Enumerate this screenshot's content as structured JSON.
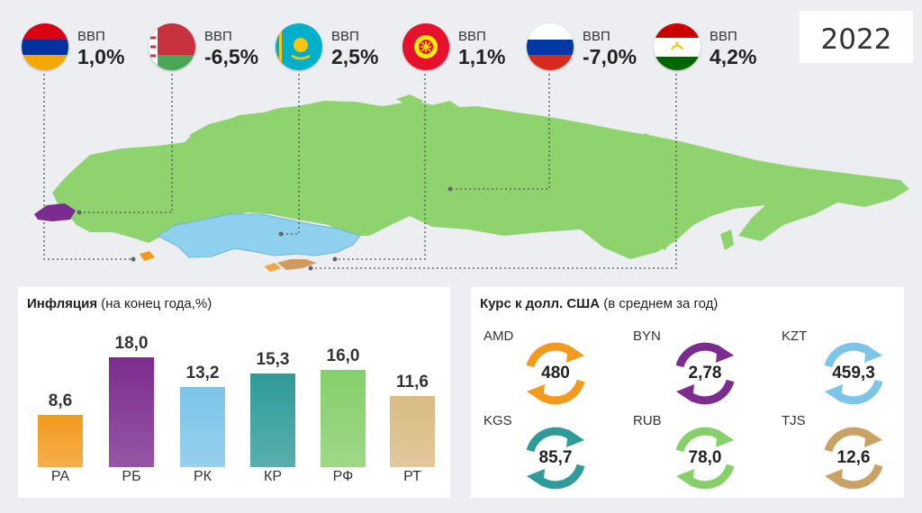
{
  "year": "2022",
  "gdp": [
    {
      "country": "Armenia",
      "label": "ВВП",
      "value": "1,0%",
      "flag": "armenia-flag"
    },
    {
      "country": "Belarus",
      "label": "ВВП",
      "value": "-6,5%",
      "flag": "belarus-flag"
    },
    {
      "country": "Kazakhstan",
      "label": "ВВП",
      "value": "2,5%",
      "flag": "kazakhstan-flag"
    },
    {
      "country": "Kyrgyzstan",
      "label": "ВВП",
      "value": "1,1%",
      "flag": "kyrgyzstan-flag"
    },
    {
      "country": "Russia",
      "label": "ВВП",
      "value": "-7,0%",
      "flag": "russia-flag"
    },
    {
      "country": "Tajikistan",
      "label": "ВВП",
      "value": "4,2%",
      "flag": "tajikistan-flag"
    }
  ],
  "inflation": {
    "title_bold": "Инфляция",
    "title_rest": " (на конец года,%)"
  },
  "exchange": {
    "title_bold": "Курс к долл. США",
    "title_rest": " (в среднем за год)",
    "items": [
      {
        "code": "AMD",
        "value": "480",
        "color": "#f39a1e"
      },
      {
        "code": "BYN",
        "value": "2,78",
        "color": "#7b2c8e"
      },
      {
        "code": "KZT",
        "value": "459,3",
        "color": "#7cc4e8"
      },
      {
        "code": "KGS",
        "value": "85,7",
        "color": "#2e9b98"
      },
      {
        "code": "RUB",
        "value": "78,0",
        "color": "#86cf6a"
      },
      {
        "code": "TJS",
        "value": "12,6",
        "color": "#c9a266"
      }
    ]
  },
  "colors": {
    "map_green": "#8ed36e",
    "map_kz": "#8fd0ef",
    "map_by": "#7b2c8e",
    "map_am": "#f39a1e"
  },
  "chart_data": {
    "type": "bar",
    "categories": [
      "РА",
      "РБ",
      "РК",
      "КР",
      "РФ",
      "РТ"
    ],
    "values": [
      8.6,
      18.0,
      13.2,
      15.3,
      16.0,
      11.6
    ],
    "value_labels": [
      "8,6",
      "18,0",
      "13,2",
      "15,3",
      "16,0",
      "11,6"
    ],
    "colors": [
      "#f39a1e",
      "#7b2c8e",
      "#7cc4e8",
      "#2e9b98",
      "#86cf6a",
      "#d9bb83"
    ],
    "title": "Инфляция (на конец года,%)",
    "ylim": [
      0,
      18
    ]
  }
}
